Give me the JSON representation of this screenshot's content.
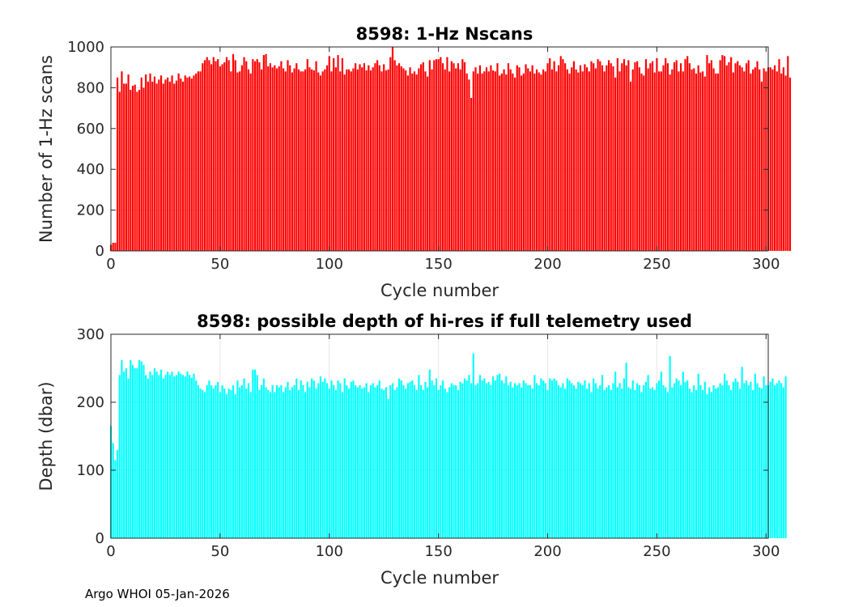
{
  "footer": "Argo WHOI 05-Jan-2026",
  "chart_data": [
    {
      "type": "bar",
      "title": "8598: 1-Hz Nscans",
      "xlabel": "Cycle number",
      "ylabel": "Number of 1-Hz scans",
      "xlim": [
        0,
        301
      ],
      "ylim": [
        0,
        1000
      ],
      "xticks": [
        0,
        50,
        100,
        150,
        200,
        250,
        300
      ],
      "yticks": [
        0,
        200,
        400,
        600,
        800,
        1000
      ],
      "grid": true,
      "color": "#ff0000",
      "x_start": 0,
      "values": [
        30,
        40,
        40,
        850,
        780,
        880,
        820,
        820,
        865,
        790,
        810,
        815,
        780,
        790,
        850,
        800,
        865,
        830,
        870,
        830,
        855,
        820,
        840,
        860,
        820,
        840,
        850,
        830,
        860,
        820,
        835,
        870,
        845,
        830,
        860,
        850,
        855,
        845,
        860,
        870,
        880,
        880,
        920,
        935,
        950,
        935,
        915,
        950,
        930,
        940,
        905,
        915,
        925,
        950,
        935,
        880,
        965,
        935,
        875,
        880,
        910,
        950,
        930,
        890,
        870,
        940,
        930,
        940,
        925,
        890,
        960,
        965,
        905,
        920,
        900,
        910,
        895,
        905,
        930,
        895,
        880,
        935,
        910,
        875,
        895,
        920,
        890,
        880,
        880,
        890,
        940,
        900,
        890,
        885,
        930,
        875,
        860,
        880,
        890,
        910,
        955,
        880,
        945,
        900,
        960,
        880,
        945,
        865,
        890,
        890,
        880,
        895,
        920,
        890,
        915,
        900,
        920,
        885,
        910,
        885,
        900,
        920,
        935,
        910,
        880,
        915,
        885,
        890,
        950,
        1000,
        935,
        910,
        920,
        905,
        895,
        885,
        860,
        900,
        870,
        880,
        865,
        895,
        915,
        925,
        880,
        855,
        935,
        890,
        935,
        940,
        940,
        950,
        920,
        890,
        950,
        880,
        930,
        920,
        895,
        920,
        890,
        940,
        925,
        870,
        840,
        750,
        880,
        900,
        870,
        910,
        870,
        880,
        900,
        880,
        910,
        885,
        880,
        920,
        860,
        870,
        890,
        865,
        920,
        890,
        870,
        850,
        910,
        900,
        860,
        870,
        915,
        895,
        880,
        910,
        870,
        890,
        875,
        865,
        890,
        880,
        920,
        945,
        890,
        930,
        880,
        910,
        955,
        940,
        920,
        890,
        870,
        900,
        930,
        890,
        875,
        910,
        880,
        915,
        900,
        880,
        930,
        920,
        895,
        940,
        930,
        910,
        880,
        910,
        935,
        920,
        905,
        850,
        945,
        880,
        920,
        940,
        910,
        935,
        830,
        890,
        925,
        930,
        900,
        870,
        860,
        940,
        895,
        920,
        930,
        875,
        945,
        880,
        880,
        910,
        945,
        920,
        865,
        890,
        925,
        935,
        880,
        920,
        880,
        940,
        955,
        920,
        890,
        895,
        870,
        910,
        875,
        880,
        855,
        960,
        920,
        935,
        895,
        870,
        870,
        935,
        960,
        955,
        910,
        925,
        950,
        875,
        920,
        930,
        910,
        900,
        880,
        920,
        935,
        870,
        890,
        900,
        930,
        890,
        830,
        895,
        880,
        900,
        900,
        890,
        910,
        880,
        940,
        870,
        900,
        860,
        955,
        850
      ]
    },
    {
      "type": "bar",
      "title": "8598: possible depth of hi-res if full telemetry used",
      "xlabel": "Cycle number",
      "ylabel": "Depth (dbar)",
      "xlim": [
        0,
        301
      ],
      "ylim": [
        0,
        300
      ],
      "xticks": [
        0,
        50,
        100,
        150,
        200,
        250,
        300
      ],
      "yticks": [
        0,
        100,
        200,
        300
      ],
      "grid": true,
      "color": "#00ffff",
      "x_start": 0,
      "values": [
        165,
        140,
        115,
        130,
        240,
        262,
        245,
        250,
        235,
        262,
        255,
        250,
        250,
        262,
        260,
        255,
        240,
        235,
        245,
        240,
        250,
        245,
        240,
        248,
        235,
        240,
        245,
        240,
        245,
        238,
        240,
        245,
        242,
        240,
        238,
        245,
        240,
        236,
        242,
        232,
        225,
        220,
        218,
        215,
        225,
        232,
        225,
        220,
        225,
        230,
        215,
        225,
        220,
        212,
        220,
        218,
        225,
        212,
        232,
        222,
        225,
        235,
        220,
        228,
        215,
        248,
        248,
        240,
        218,
        225,
        235,
        222,
        218,
        215,
        225,
        215,
        225,
        222,
        225,
        215,
        222,
        230,
        218,
        222,
        225,
        235,
        218,
        232,
        225,
        215,
        230,
        222,
        235,
        232,
        220,
        228,
        238,
        230,
        235,
        228,
        220,
        232,
        225,
        218,
        232,
        228,
        215,
        235,
        225,
        220,
        230,
        232,
        225,
        222,
        225,
        220,
        222,
        228,
        215,
        225,
        228,
        222,
        225,
        232,
        220,
        218,
        222,
        205,
        225,
        228,
        218,
        222,
        235,
        232,
        225,
        220,
        228,
        230,
        232,
        225,
        218,
        240,
        225,
        218,
        230,
        222,
        248,
        232,
        225,
        235,
        218,
        225,
        232,
        220,
        215,
        222,
        228,
        225,
        225,
        218,
        230,
        228,
        235,
        232,
        240,
        228,
        272,
        225,
        228,
        240,
        232,
        235,
        228,
        230,
        225,
        238,
        232,
        240,
        242,
        232,
        228,
        238,
        225,
        230,
        222,
        228,
        225,
        228,
        222,
        232,
        228,
        225,
        225,
        220,
        240,
        228,
        225,
        235,
        232,
        228,
        218,
        235,
        232,
        235,
        232,
        225,
        222,
        228,
        220,
        235,
        232,
        228,
        225,
        220,
        230,
        228,
        225,
        232,
        220,
        228,
        215,
        235,
        228,
        220,
        225,
        240,
        218,
        222,
        225,
        218,
        228,
        245,
        222,
        228,
        220,
        235,
        258,
        222,
        220,
        232,
        218,
        228,
        225,
        215,
        225,
        230,
        240,
        220,
        222,
        218,
        228,
        232,
        245,
        225,
        222,
        215,
        268,
        222,
        228,
        235,
        232,
        225,
        245,
        230,
        232,
        220,
        215,
        225,
        218,
        242,
        225,
        218,
        230,
        212,
        222,
        215,
        225,
        220,
        222,
        228,
        225,
        242,
        232,
        225,
        218,
        230,
        235,
        230,
        220,
        252,
        228,
        232,
        225,
        230,
        218,
        242,
        228,
        222,
        220,
        238,
        225,
        225,
        230,
        235,
        225,
        228,
        232,
        228,
        222,
        238
      ]
    }
  ]
}
